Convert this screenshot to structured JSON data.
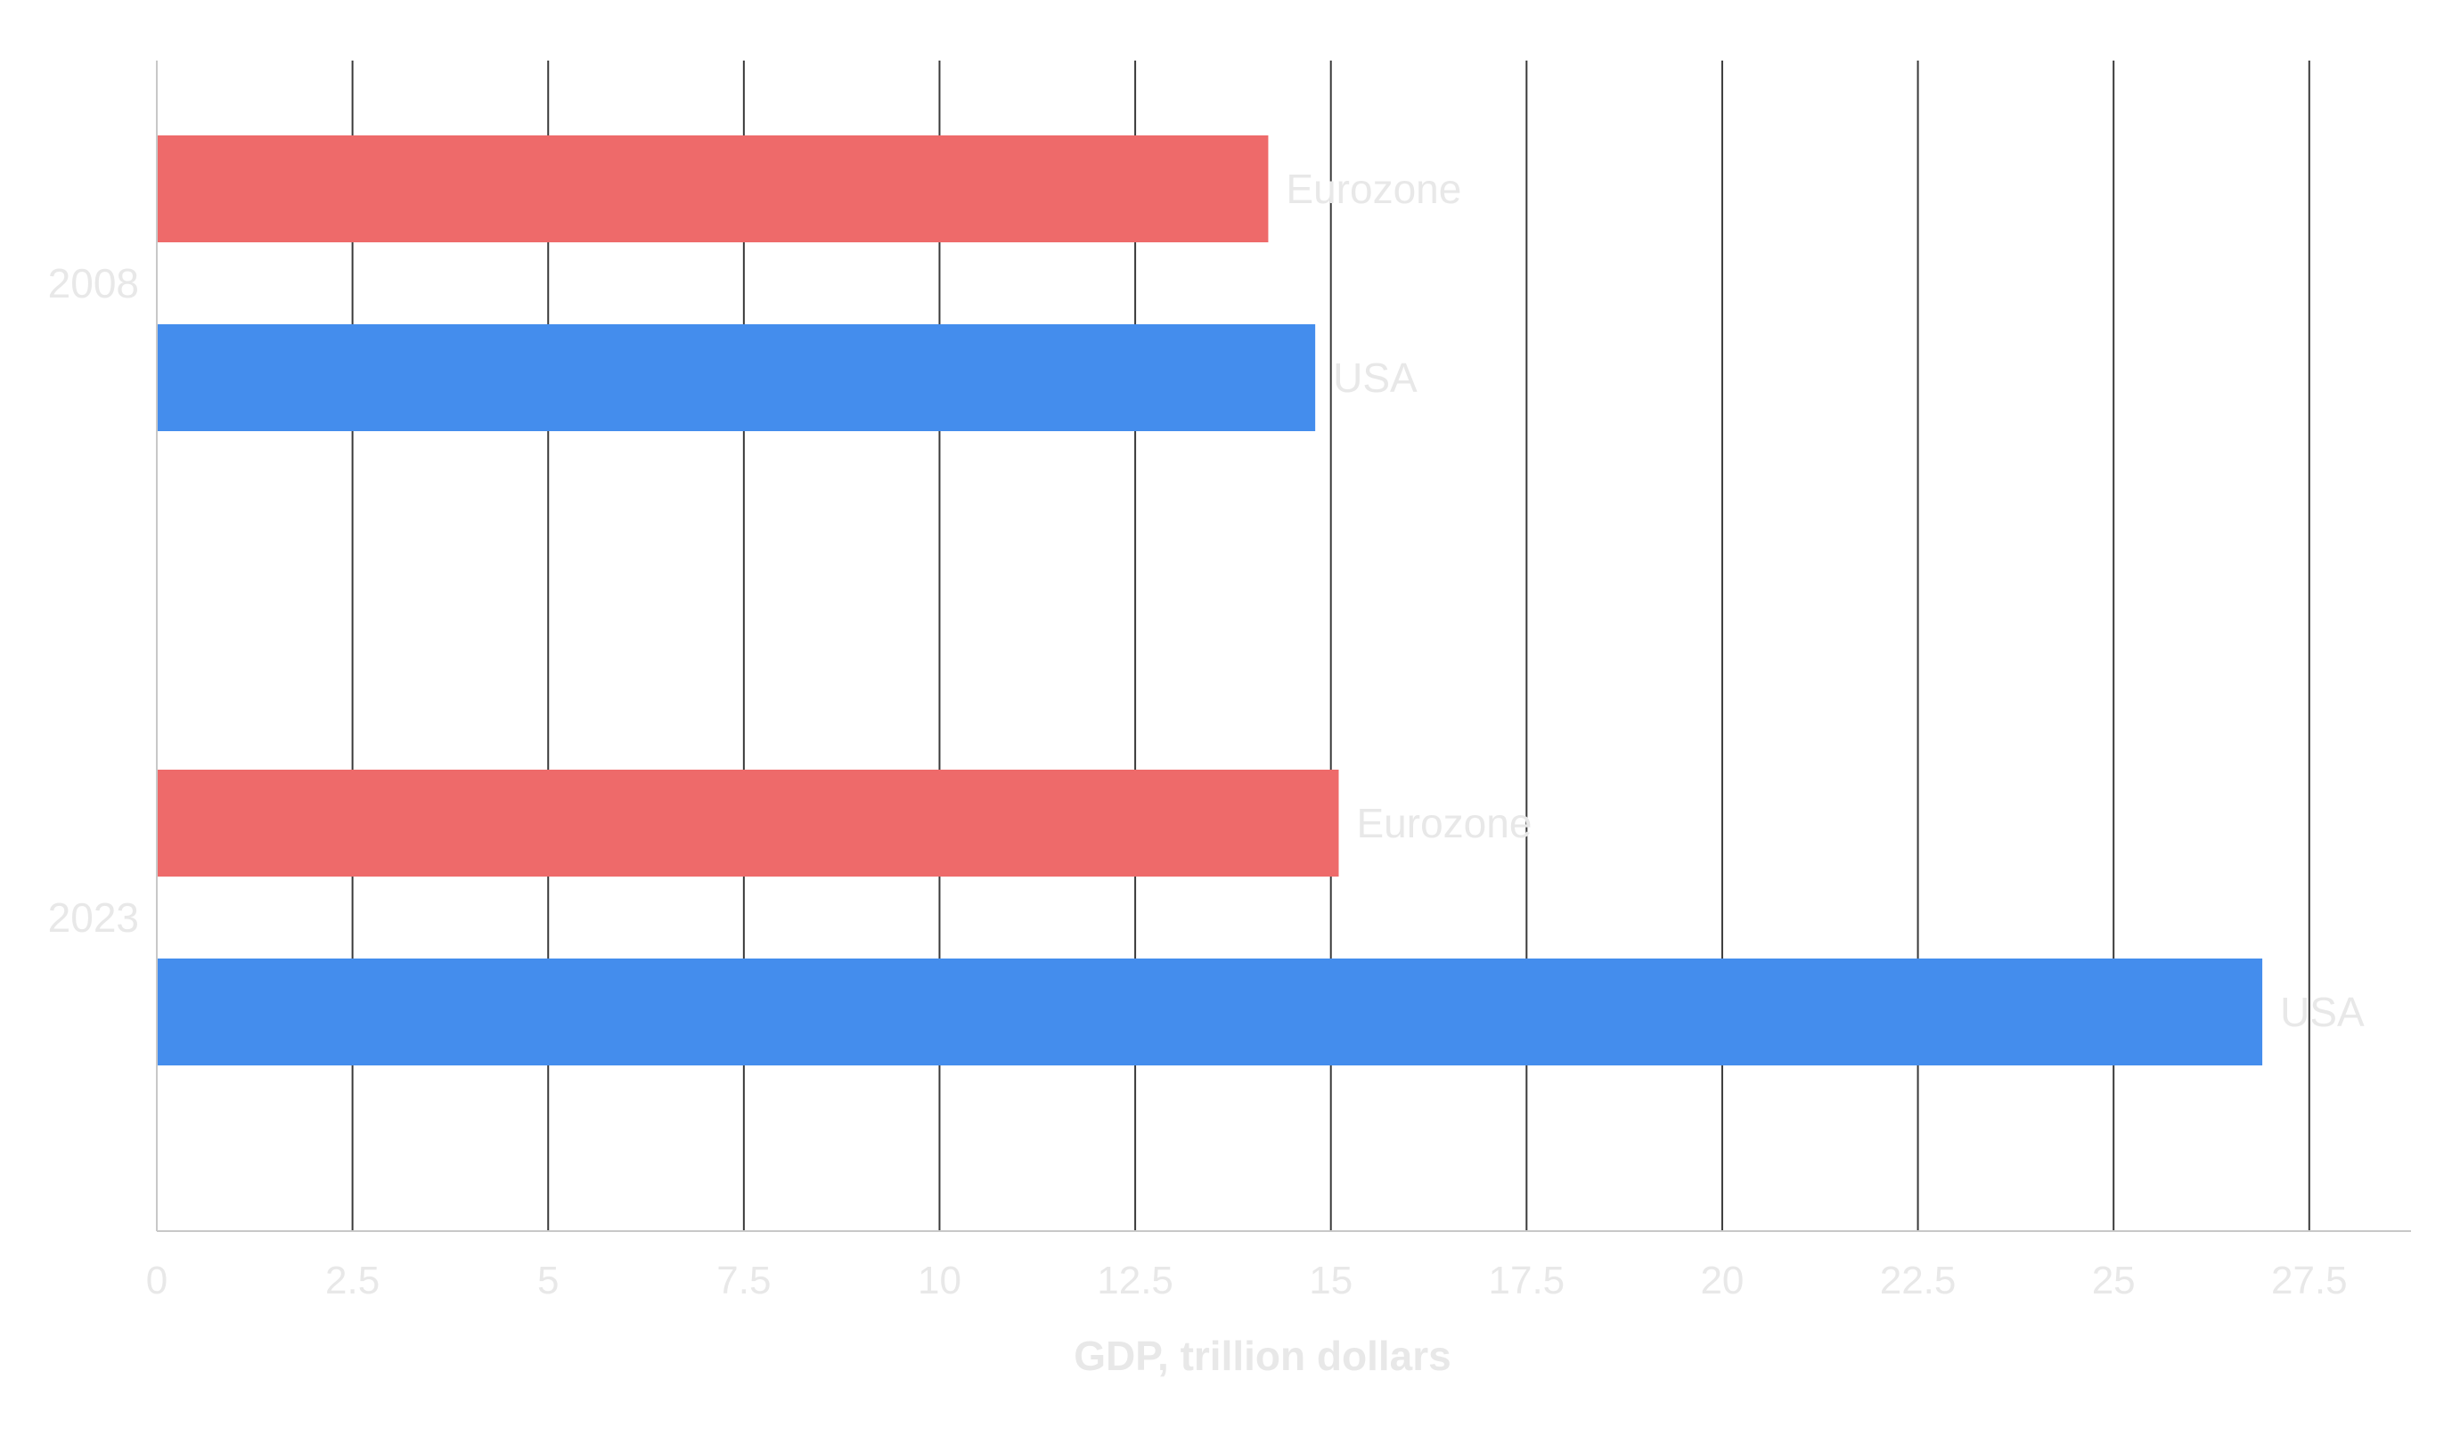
{
  "chart_data": {
    "type": "bar",
    "orientation": "horizontal",
    "title": "",
    "xlabel": "GDP, trillion dollars",
    "ylabel": "",
    "categories": [
      "2008",
      "2023"
    ],
    "series": [
      {
        "name": "Eurozone",
        "color": "#ee6a6a",
        "values": [
          14.2,
          15.1
        ]
      },
      {
        "name": "USA",
        "color": "#448ded",
        "values": [
          14.8,
          26.9
        ]
      }
    ],
    "xlim": [
      0,
      28.8
    ],
    "x_ticks": [
      0,
      2.5,
      5,
      7.5,
      10,
      12.5,
      15,
      17.5,
      20,
      22.5,
      25,
      27.5
    ],
    "x_tick_labels": [
      "0",
      "2.5",
      "5",
      "7.5",
      "10",
      "12.5",
      "15",
      "17.5",
      "20",
      "22.5",
      "25",
      "27.5"
    ],
    "grid": true,
    "legend": "none",
    "data_labels": "series-name"
  }
}
